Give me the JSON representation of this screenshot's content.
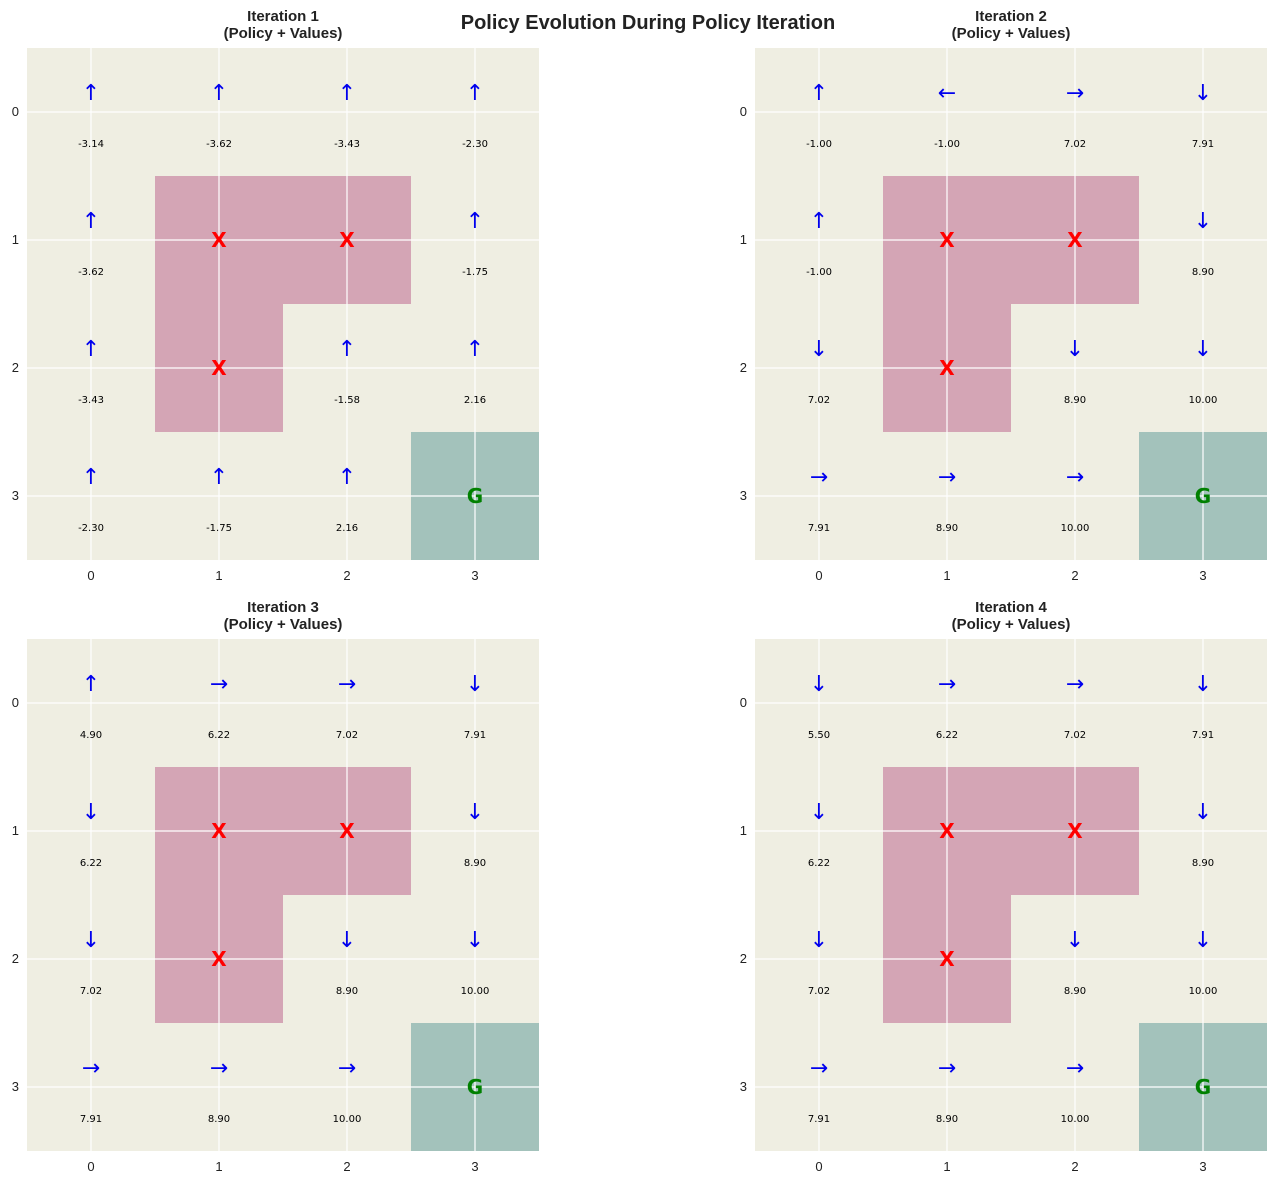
{
  "title": "Policy Evolution During Policy Iteration",
  "colors": {
    "background": "#efeee2",
    "obstacle": "#d4a5b5",
    "goal": "#a3c2bb",
    "gridline": "#ffffff",
    "arrow": "#0000ee",
    "obstacle_mark": "#ff0000",
    "goal_mark": "#008000",
    "value_text": "#000000"
  },
  "chart_data": [
    {
      "type": "heatmap",
      "title": "Iteration 1",
      "subtitle": "(Policy + Values)",
      "rows": [
        0,
        1,
        2,
        3
      ],
      "cols": [
        0,
        1,
        2,
        3
      ],
      "obstacles": [
        [
          1,
          1
        ],
        [
          1,
          2
        ],
        [
          2,
          1
        ]
      ],
      "goal": [
        3,
        3
      ],
      "obstacle_label": "X",
      "goal_label": "G",
      "policy": [
        [
          "↑",
          "↑",
          "↑",
          "↑"
        ],
        [
          "↑",
          "",
          "",
          "↑"
        ],
        [
          "↑",
          "",
          "↑",
          "↑"
        ],
        [
          "↑",
          "↑",
          "↑",
          ""
        ]
      ],
      "values": [
        [
          "-3.14",
          "-3.62",
          "-3.43",
          "-2.30"
        ],
        [
          "-3.62",
          "",
          "",
          "-1.75"
        ],
        [
          "-3.43",
          "",
          "-1.58",
          "2.16"
        ],
        [
          "-2.30",
          "-1.75",
          "2.16",
          ""
        ]
      ]
    },
    {
      "type": "heatmap",
      "title": "Iteration 2",
      "subtitle": "(Policy + Values)",
      "rows": [
        0,
        1,
        2,
        3
      ],
      "cols": [
        0,
        1,
        2,
        3
      ],
      "obstacles": [
        [
          1,
          1
        ],
        [
          1,
          2
        ],
        [
          2,
          1
        ]
      ],
      "goal": [
        3,
        3
      ],
      "obstacle_label": "X",
      "goal_label": "G",
      "policy": [
        [
          "↑",
          "←",
          "→",
          "↓"
        ],
        [
          "↑",
          "",
          "",
          "↓"
        ],
        [
          "↓",
          "",
          "↓",
          "↓"
        ],
        [
          "→",
          "→",
          "→",
          ""
        ]
      ],
      "values": [
        [
          "-1.00",
          "-1.00",
          "7.02",
          "7.91"
        ],
        [
          "-1.00",
          "",
          "",
          "8.90"
        ],
        [
          "7.02",
          "",
          "8.90",
          "10.00"
        ],
        [
          "7.91",
          "8.90",
          "10.00",
          ""
        ]
      ]
    },
    {
      "type": "heatmap",
      "title": "Iteration 3",
      "subtitle": "(Policy + Values)",
      "rows": [
        0,
        1,
        2,
        3
      ],
      "cols": [
        0,
        1,
        2,
        3
      ],
      "obstacles": [
        [
          1,
          1
        ],
        [
          1,
          2
        ],
        [
          2,
          1
        ]
      ],
      "goal": [
        3,
        3
      ],
      "obstacle_label": "X",
      "goal_label": "G",
      "policy": [
        [
          "↑",
          "→",
          "→",
          "↓"
        ],
        [
          "↓",
          "",
          "",
          "↓"
        ],
        [
          "↓",
          "",
          "↓",
          "↓"
        ],
        [
          "→",
          "→",
          "→",
          ""
        ]
      ],
      "values": [
        [
          "4.90",
          "6.22",
          "7.02",
          "7.91"
        ],
        [
          "6.22",
          "",
          "",
          "8.90"
        ],
        [
          "7.02",
          "",
          "8.90",
          "10.00"
        ],
        [
          "7.91",
          "8.90",
          "10.00",
          ""
        ]
      ]
    },
    {
      "type": "heatmap",
      "title": "Iteration 4",
      "subtitle": "(Policy + Values)",
      "rows": [
        0,
        1,
        2,
        3
      ],
      "cols": [
        0,
        1,
        2,
        3
      ],
      "obstacles": [
        [
          1,
          1
        ],
        [
          1,
          2
        ],
        [
          2,
          1
        ]
      ],
      "goal": [
        3,
        3
      ],
      "obstacle_label": "X",
      "goal_label": "G",
      "policy": [
        [
          "↓",
          "→",
          "→",
          "↓"
        ],
        [
          "↓",
          "",
          "",
          "↓"
        ],
        [
          "↓",
          "",
          "↓",
          "↓"
        ],
        [
          "→",
          "→",
          "→",
          ""
        ]
      ],
      "values": [
        [
          "5.50",
          "6.22",
          "7.02",
          "7.91"
        ],
        [
          "6.22",
          "",
          "",
          "8.90"
        ],
        [
          "7.02",
          "",
          "8.90",
          "10.00"
        ],
        [
          "7.91",
          "8.90",
          "10.00",
          ""
        ]
      ]
    }
  ]
}
